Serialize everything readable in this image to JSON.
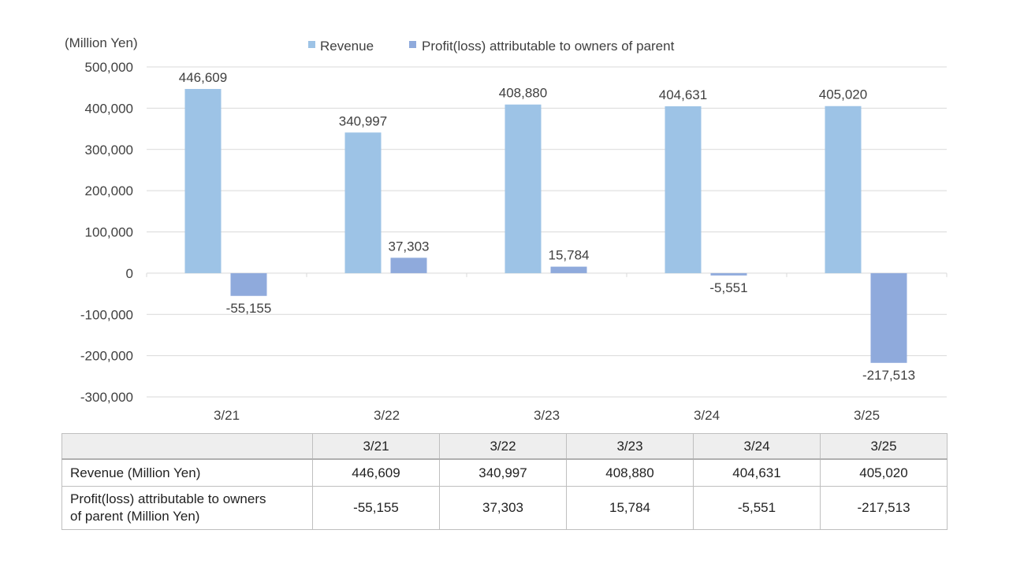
{
  "chart_data": {
    "type": "bar",
    "unit_label": "(Million Yen)",
    "categories": [
      "3/21",
      "3/22",
      "3/23",
      "3/24",
      "3/25"
    ],
    "series": [
      {
        "name": "Revenue",
        "color": "#9dc3e6",
        "values": [
          446609,
          340997,
          408880,
          404631,
          405020
        ],
        "labels": [
          "446,609",
          "340,997",
          "408,880",
          "404,631",
          "405,020"
        ]
      },
      {
        "name": "Profit(loss) attributable to owners of parent",
        "color": "#8faadc",
        "values": [
          -55155,
          37303,
          15784,
          -5551,
          -217513
        ],
        "labels": [
          "-55,155",
          "37,303",
          "15,784",
          "-5,551",
          "-217,513"
        ]
      }
    ],
    "ylim": [
      -300000,
      500000
    ],
    "yticks": [
      500000,
      400000,
      300000,
      200000,
      100000,
      0,
      -100000,
      -200000,
      -300000
    ],
    "ytick_labels": [
      "500,000",
      "400,000",
      "300,000",
      "200,000",
      "100,000",
      "0",
      "-100,000",
      "-200,000",
      "-300,000"
    ],
    "grid": true,
    "legend": "top-center"
  },
  "table": {
    "header": [
      "",
      "3/21",
      "3/22",
      "3/23",
      "3/24",
      "3/25"
    ],
    "rows": [
      {
        "label": "Revenue (Million Yen)",
        "values": [
          "446,609",
          "340,997",
          "408,880",
          "404,631",
          "405,020"
        ]
      },
      {
        "label_line1": "Profit(loss) attributable to owners",
        "label_line2": "of parent (Million Yen)",
        "values": [
          "-55,155",
          "37,303",
          "15,784",
          "-5,551",
          "-217,513"
        ]
      }
    ]
  }
}
